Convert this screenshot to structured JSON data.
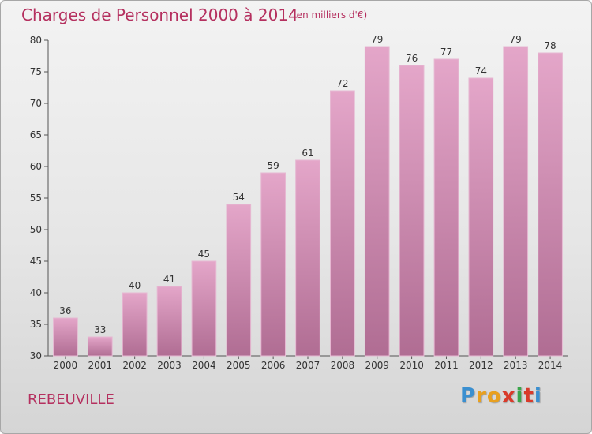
{
  "header": {
    "title": "Charges de Personnel 2000 à 2014",
    "subtitle": "(en milliers d'€)"
  },
  "footer": {
    "commune": "REBEUVILLE",
    "logo": "Proxiti"
  },
  "colors": {
    "bar_top": "#e4a6c9",
    "bar_bottom": "#b06d93",
    "title": "#b5305f",
    "logo_letters": [
      "#3a8fd0",
      "#e8a020",
      "#e8a020",
      "#d93a2a",
      "#3aa54a",
      "#d93a2a",
      "#3a8fd0"
    ]
  },
  "chart_data": {
    "type": "bar",
    "title": "Charges de Personnel 2000 à 2014",
    "subtitle": "(en milliers d'€)",
    "categories": [
      "2000",
      "2001",
      "2002",
      "2003",
      "2004",
      "2005",
      "2006",
      "2007",
      "2008",
      "2009",
      "2010",
      "2011",
      "2012",
      "2013",
      "2014"
    ],
    "values": [
      36,
      33,
      40,
      41,
      45,
      54,
      59,
      61,
      72,
      79,
      76,
      77,
      74,
      79,
      78
    ],
    "ylim": [
      30,
      80
    ],
    "yticks": [
      30,
      35,
      40,
      45,
      50,
      55,
      60,
      65,
      70,
      75,
      80
    ],
    "grid": false,
    "data_labels": true
  }
}
